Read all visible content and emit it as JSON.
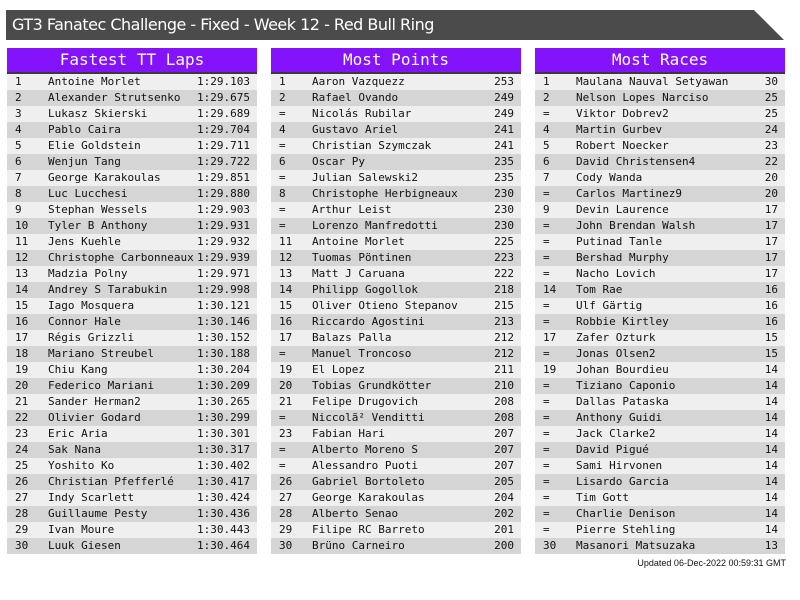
{
  "title": "GT3 Fanatec Challenge - Fixed - Week 12 - Red Bull Ring",
  "colors": {
    "header": "#8412fb",
    "titlebar": "#4b4b4b"
  },
  "panels": [
    {
      "title": "Fastest TT Laps",
      "rows": [
        [
          "1",
          "Antoine Morlet",
          "1:29.103"
        ],
        [
          "2",
          "Alexander Strutsenko",
          "1:29.675"
        ],
        [
          "3",
          "Lukasz Skierski",
          "1:29.689"
        ],
        [
          "4",
          "Pablo Caira",
          "1:29.704"
        ],
        [
          "5",
          "Elie Goldstein",
          "1:29.711"
        ],
        [
          "6",
          "Wenjun Tang",
          "1:29.722"
        ],
        [
          "7",
          "George Karakoulas",
          "1:29.851"
        ],
        [
          "8",
          "Luc Lucchesi",
          "1:29.880"
        ],
        [
          "9",
          "Stephan Wessels",
          "1:29.903"
        ],
        [
          "10",
          "Tyler B Anthony",
          "1:29.931"
        ],
        [
          "11",
          "Jens Kuehle",
          "1:29.932"
        ],
        [
          "12",
          "Christophe Carbonneaux",
          "1:29.939"
        ],
        [
          "13",
          "Madzia Polny",
          "1:29.971"
        ],
        [
          "14",
          "Andrey S Tarabukin",
          "1:29.998"
        ],
        [
          "15",
          "Iago Mosquera",
          "1:30.121"
        ],
        [
          "16",
          "Connor Hale",
          "1:30.146"
        ],
        [
          "17",
          "Régis Grizzli",
          "1:30.152"
        ],
        [
          "18",
          "Mariano Streubel",
          "1:30.188"
        ],
        [
          "19",
          "Chiu Kang",
          "1:30.204"
        ],
        [
          "20",
          "Federico Mariani",
          "1:30.209"
        ],
        [
          "21",
          "Sander Herman2",
          "1:30.265"
        ],
        [
          "22",
          "Olivier Godard",
          "1:30.299"
        ],
        [
          "23",
          "Eric Aria",
          "1:30.301"
        ],
        [
          "24",
          "Sak Nana",
          "1:30.317"
        ],
        [
          "25",
          "Yoshito Ko",
          "1:30.402"
        ],
        [
          "26",
          "Christian Pfefferlé",
          "1:30.417"
        ],
        [
          "27",
          "Indy Scarlett",
          "1:30.424"
        ],
        [
          "28",
          "Guillaume Pesty",
          "1:30.436"
        ],
        [
          "29",
          "Ivan Moure",
          "1:30.443"
        ],
        [
          "30",
          "Luuk Giesen",
          "1:30.464"
        ]
      ]
    },
    {
      "title": "Most Points",
      "rows": [
        [
          "1",
          "Aaron Vazquezz",
          "253"
        ],
        [
          "2",
          "Rafael Ovando",
          "249"
        ],
        [
          "=",
          "Nicolás Rubilar",
          "249"
        ],
        [
          "4",
          "Gustavo Ariel",
          "241"
        ],
        [
          "=",
          "Christian Szymczak",
          "241"
        ],
        [
          "6",
          "Oscar Py",
          "235"
        ],
        [
          "=",
          "Julian Salewski2",
          "235"
        ],
        [
          "8",
          "Christophe Herbigneaux",
          "230"
        ],
        [
          "=",
          "Arthur Leist",
          "230"
        ],
        [
          "=",
          "Lorenzo Manfredotti",
          "230"
        ],
        [
          "11",
          "Antoine Morlet",
          "225"
        ],
        [
          "12",
          "Tuomas Pöntinen",
          "223"
        ],
        [
          "13",
          "Matt J Caruana",
          "222"
        ],
        [
          "14",
          "Philipp Gogollok",
          "218"
        ],
        [
          "15",
          "Oliver Otieno Stepanov",
          "215"
        ],
        [
          "16",
          "Riccardo Agostini",
          "213"
        ],
        [
          "17",
          "Balazs Palla",
          "212"
        ],
        [
          "=",
          "Manuel Troncoso",
          "212"
        ],
        [
          "19",
          "El Lopez",
          "211"
        ],
        [
          "20",
          "Tobias Grundkötter",
          "210"
        ],
        [
          "21",
          "Felipe Drugovich",
          "208"
        ],
        [
          "=",
          "Niccolã² Venditti",
          "208"
        ],
        [
          "23",
          "Fabian Hari",
          "207"
        ],
        [
          "=",
          "Alberto Moreno S",
          "207"
        ],
        [
          "=",
          "Alessandro Puoti",
          "207"
        ],
        [
          "26",
          "Gabriel Bortoleto",
          "205"
        ],
        [
          "27",
          "George Karakoulas",
          "204"
        ],
        [
          "28",
          "Alberto Senao",
          "202"
        ],
        [
          "29",
          "Filipe RC Barreto",
          "201"
        ],
        [
          "30",
          "Brüno Carneiro",
          "200"
        ]
      ]
    },
    {
      "title": "Most Races",
      "rows": [
        [
          "1",
          "Maulana Nauval Setyawan",
          "30"
        ],
        [
          "2",
          "Nelson Lopes Narciso",
          "25"
        ],
        [
          "=",
          "Viktor Dobrev2",
          "25"
        ],
        [
          "4",
          "Martin Gurbev",
          "24"
        ],
        [
          "5",
          "Robert Noecker",
          "23"
        ],
        [
          "6",
          "David Christensen4",
          "22"
        ],
        [
          "7",
          "Cody Wanda",
          "20"
        ],
        [
          "=",
          "Carlos Martinez9",
          "20"
        ],
        [
          "9",
          "Devin Laurence",
          "17"
        ],
        [
          "=",
          "John Brendan Walsh",
          "17"
        ],
        [
          "=",
          "Putinad Tanle",
          "17"
        ],
        [
          "=",
          "Bershad Murphy",
          "17"
        ],
        [
          "=",
          "Nacho Lovich",
          "17"
        ],
        [
          "14",
          "Tom Rae",
          "16"
        ],
        [
          "=",
          "Ulf Gärtig",
          "16"
        ],
        [
          "=",
          "Robbie Kirtley",
          "16"
        ],
        [
          "17",
          "Zafer Ozturk",
          "15"
        ],
        [
          "=",
          "Jonas Olsen2",
          "15"
        ],
        [
          "19",
          "Johan Bourdieu",
          "14"
        ],
        [
          "=",
          "Tiziano Caponio",
          "14"
        ],
        [
          "=",
          "Dallas Pataska",
          "14"
        ],
        [
          "=",
          "Anthony Guidi",
          "14"
        ],
        [
          "=",
          "Jack Clarke2",
          "14"
        ],
        [
          "=",
          "David Pigué",
          "14"
        ],
        [
          "=",
          "Sami Hirvonen",
          "14"
        ],
        [
          "=",
          "Lisardo Garcia",
          "14"
        ],
        [
          "=",
          "Tim Gott",
          "14"
        ],
        [
          "=",
          "Charlie Denison",
          "14"
        ],
        [
          "=",
          "Pierre Stehling",
          "14"
        ],
        [
          "30",
          "Masanori Matsuzaka",
          "13"
        ]
      ]
    }
  ],
  "footer": "Updated 06-Dec-2022 00:59:31 GMT"
}
